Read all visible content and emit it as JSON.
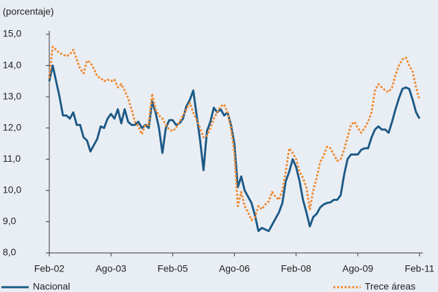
{
  "chart_data": {
    "type": "line",
    "y_label": "(porcentaje)",
    "categories": [
      "Feb-02",
      null,
      null,
      null,
      null,
      null,
      null,
      null,
      null,
      null,
      null,
      null,
      null,
      null,
      null,
      null,
      null,
      null,
      "Ago-03",
      null,
      null,
      null,
      null,
      null,
      null,
      null,
      null,
      null,
      null,
      null,
      null,
      null,
      null,
      null,
      null,
      null,
      "Feb-05",
      null,
      null,
      null,
      null,
      null,
      null,
      null,
      null,
      null,
      null,
      null,
      null,
      null,
      null,
      null,
      null,
      null,
      "Ago-06",
      null,
      null,
      null,
      null,
      null,
      null,
      null,
      null,
      null,
      null,
      null,
      null,
      null,
      null,
      null,
      null,
      null,
      "Feb-08",
      null,
      null,
      null,
      null,
      null,
      null,
      null,
      null,
      null,
      null,
      null,
      null,
      null,
      null,
      null,
      null,
      null,
      "Ago-09",
      null,
      null,
      null,
      null,
      null,
      null,
      null,
      null,
      null,
      null,
      null,
      null,
      null,
      null,
      null,
      null,
      null,
      "Feb-11"
    ],
    "series": [
      {
        "name": "Nacional",
        "color": "#1d5a87",
        "dash": "solid",
        "values": [
          13.5,
          14.0,
          13.5,
          13.0,
          12.4,
          12.4,
          12.3,
          12.5,
          12.1,
          12.1,
          11.7,
          11.6,
          11.25,
          11.45,
          11.65,
          12.05,
          12.0,
          12.3,
          12.45,
          12.3,
          12.6,
          12.15,
          12.6,
          12.2,
          12.1,
          12.1,
          12.2,
          12.0,
          12.1,
          12.0,
          12.85,
          12.5,
          12.0,
          11.2,
          12.0,
          12.25,
          12.25,
          12.1,
          12.15,
          12.3,
          12.7,
          12.9,
          13.2,
          12.4,
          11.6,
          10.65,
          11.9,
          12.2,
          12.65,
          12.5,
          12.6,
          12.4,
          12.5,
          12.1,
          11.5,
          10.1,
          10.45,
          10.0,
          9.8,
          9.6,
          9.2,
          8.7,
          8.8,
          8.75,
          8.7,
          8.9,
          9.1,
          9.3,
          9.6,
          10.3,
          10.6,
          11.0,
          10.75,
          10.3,
          9.7,
          9.3,
          8.85,
          9.15,
          9.25,
          9.45,
          9.55,
          9.6,
          9.62,
          9.7,
          9.7,
          9.85,
          10.5,
          11.0,
          11.15,
          11.15,
          11.15,
          11.3,
          11.35,
          11.35,
          11.7,
          11.95,
          12.05,
          11.95,
          11.95,
          11.85,
          12.2,
          12.6,
          12.95,
          13.25,
          13.3,
          13.25,
          12.9,
          12.5,
          12.3
        ]
      },
      {
        "name": "Trece áreas",
        "color": "#f08a30",
        "dash": "dotted",
        "values": [
          13.6,
          14.6,
          14.5,
          14.4,
          14.35,
          14.3,
          14.35,
          14.5,
          14.2,
          13.9,
          13.75,
          14.15,
          14.1,
          13.9,
          13.65,
          13.6,
          13.5,
          13.55,
          13.5,
          13.55,
          13.3,
          13.4,
          13.2,
          12.95,
          12.6,
          12.2,
          12.05,
          11.8,
          12.1,
          12.1,
          13.1,
          12.6,
          12.4,
          12.3,
          12.1,
          11.95,
          11.9,
          12.0,
          12.2,
          12.4,
          12.6,
          12.8,
          12.5,
          12.25,
          12.0,
          11.7,
          11.75,
          12.0,
          12.3,
          12.5,
          12.7,
          12.75,
          12.5,
          12.0,
          11.2,
          9.5,
          9.95,
          9.5,
          9.3,
          9.05,
          9.15,
          9.5,
          9.4,
          9.55,
          9.65,
          9.95,
          9.8,
          9.7,
          10.0,
          10.6,
          11.35,
          11.2,
          11.0,
          10.6,
          10.4,
          10.1,
          9.4,
          10.0,
          10.4,
          10.9,
          11.1,
          11.4,
          11.35,
          11.15,
          10.95,
          11.0,
          11.3,
          11.7,
          12.1,
          12.2,
          12.0,
          11.85,
          12.0,
          12.2,
          12.5,
          13.2,
          13.4,
          13.3,
          13.2,
          13.15,
          13.3,
          13.7,
          14.0,
          14.2,
          14.25,
          14.0,
          13.8,
          13.3,
          12.9
        ]
      }
    ],
    "ylim": [
      8,
      15
    ],
    "yticks": [
      {
        "value": 8,
        "label": "8,0"
      },
      {
        "value": 9,
        "label": "9,0"
      },
      {
        "value": 10,
        "label": "10,0"
      },
      {
        "value": 11,
        "label": "11,0"
      },
      {
        "value": 12,
        "label": "12,0"
      },
      {
        "value": 13,
        "label": "13,0"
      },
      {
        "value": 14,
        "label": "14,0"
      },
      {
        "value": 15,
        "label": "15,0"
      }
    ],
    "grid": false,
    "legend": "bottom"
  }
}
